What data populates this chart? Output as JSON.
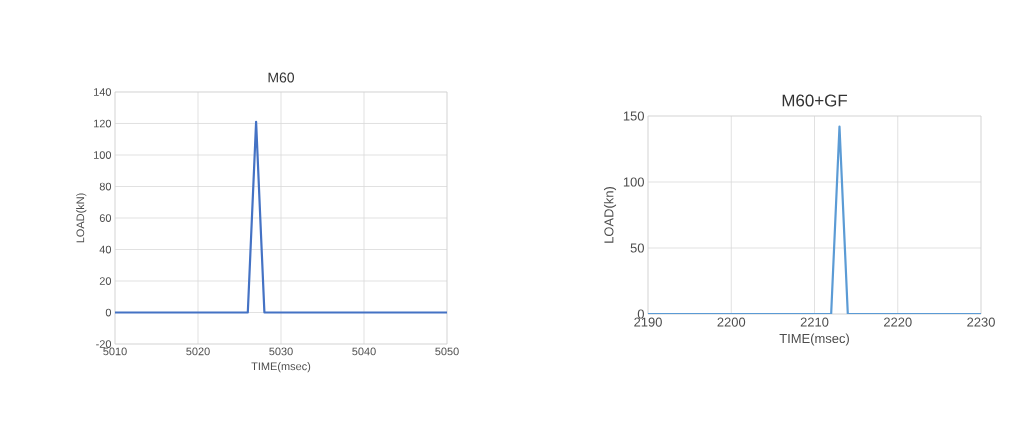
{
  "chart_data": [
    {
      "type": "line",
      "title": "M60",
      "xlabel": "TIME(msec)",
      "ylabel": "LOAD(kN)",
      "x": [
        5010,
        5026,
        5027,
        5028,
        5050
      ],
      "series": [
        {
          "color": "#4472c4",
          "values": [
            0,
            0,
            121,
            0,
            0
          ]
        }
      ],
      "xlim": [
        5010,
        5050
      ],
      "ylim": [
        -20,
        140
      ],
      "xticks": [
        5010,
        5020,
        5030,
        5040,
        5050
      ],
      "yticks": [
        -20,
        0,
        20,
        40,
        60,
        80,
        100,
        120,
        140
      ],
      "grid": true
    },
    {
      "type": "line",
      "title": "M60+GF",
      "xlabel": "TIME(msec)",
      "ylabel": "LOAD(kn)",
      "x": [
        2190,
        2212,
        2213,
        2214,
        2230
      ],
      "series": [
        {
          "color": "#5b9bd5",
          "values": [
            0,
            0,
            142,
            0,
            0
          ]
        }
      ],
      "xlim": [
        2190,
        2230
      ],
      "ylim": [
        0,
        150
      ],
      "xticks": [
        2190,
        2200,
        2210,
        2220,
        2230
      ],
      "yticks": [
        0,
        50,
        100,
        150
      ],
      "grid": true
    }
  ]
}
